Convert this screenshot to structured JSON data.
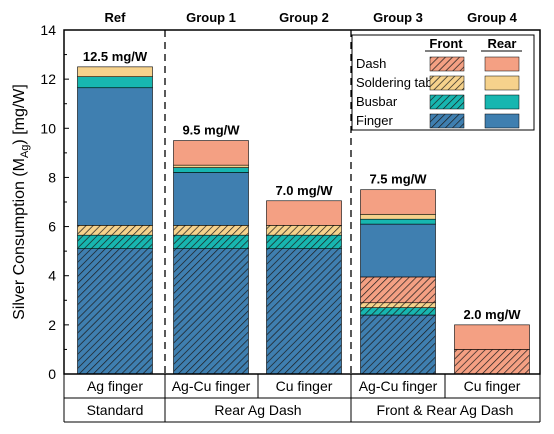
{
  "chart_data": {
    "type": "bar",
    "stacked": true,
    "ylabel": "Silver Consumption (M",
    "ylabel_sub": "Ag",
    "ylabel_suffix": ") [mg/W]",
    "ylim": [
      0,
      14
    ],
    "yticks": [
      "0",
      "2",
      "4",
      "6",
      "8",
      "10",
      "12",
      "14"
    ],
    "groups": [
      "Ref",
      "Group 1",
      "Group 2",
      "Group 3",
      "Group 4"
    ],
    "categories": [
      "Ag finger",
      "Ag-Cu finger",
      "Cu finger",
      "Ag-Cu finger",
      "Cu finger"
    ],
    "processes": [
      "Standard",
      "Rear Ag Dash",
      "Front & Rear Ag Dash"
    ],
    "totals": [
      "12.5 mg/W",
      "9.5 mg/W",
      "7.0 mg/W",
      "7.5 mg/W",
      "2.0 mg/W"
    ],
    "legend": {
      "placement": "top-right",
      "col_headers": [
        "Front",
        "Rear"
      ],
      "rows": [
        "Dash",
        "Soldering tab",
        "Busbar",
        "Finger"
      ]
    },
    "colors": {
      "finger": "#3f7fb0",
      "busbar": "#17b6b0",
      "tab": "#f6d28c",
      "dash": "#f4a083",
      "hatch": "#1a1a1a"
    },
    "series_order": [
      "finger_front",
      "busbar_front",
      "tab_front",
      "dash_front",
      "finger_rear",
      "busbar_rear",
      "tab_rear",
      "dash_rear"
    ],
    "stacks": [
      {
        "finger_front": 5.1,
        "busbar_front": 0.55,
        "tab_front": 0.4,
        "dash_front": 0,
        "finger_rear": 5.6,
        "busbar_rear": 0.45,
        "tab_rear": 0.4,
        "dash_rear": 0
      },
      {
        "finger_front": 5.1,
        "busbar_front": 0.55,
        "tab_front": 0.4,
        "dash_front": 0,
        "finger_rear": 2.15,
        "busbar_rear": 0.2,
        "tab_rear": 0.1,
        "dash_rear": 1.0
      },
      {
        "finger_front": 5.1,
        "busbar_front": 0.55,
        "tab_front": 0.4,
        "dash_front": 0,
        "finger_rear": 0,
        "busbar_rear": 0,
        "tab_rear": 0,
        "dash_rear": 1.0
      },
      {
        "finger_front": 2.4,
        "busbar_front": 0.3,
        "tab_front": 0.2,
        "dash_front": 1.05,
        "finger_rear": 2.15,
        "busbar_rear": 0.2,
        "tab_rear": 0.2,
        "dash_rear": 1.0
      },
      {
        "finger_front": 0,
        "busbar_front": 0,
        "tab_front": 0,
        "dash_front": 1.0,
        "finger_rear": 0,
        "busbar_rear": 0,
        "tab_rear": 0,
        "dash_rear": 1.0
      }
    ]
  }
}
